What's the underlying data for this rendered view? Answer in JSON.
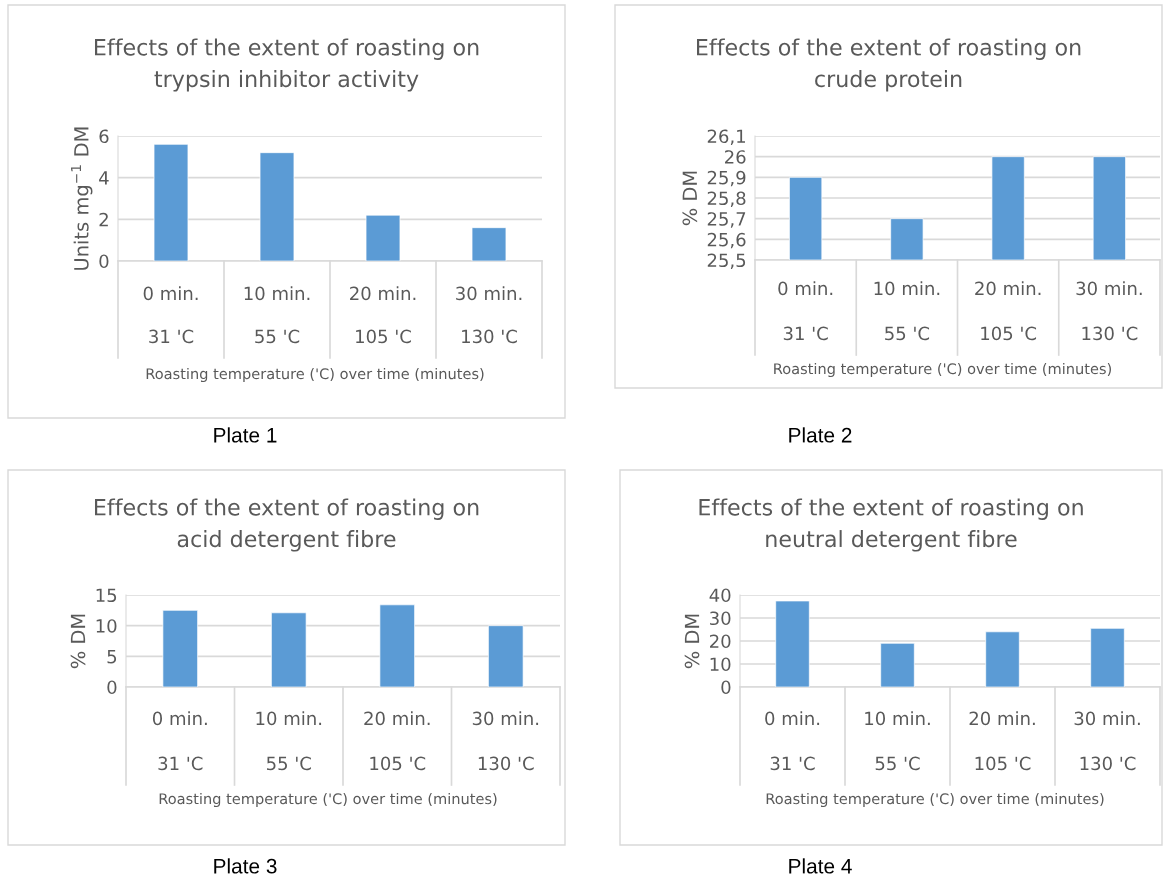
{
  "chart_data": [
    {
      "type": "bar",
      "title": "Effects of the extent of roasting on\ntrypsin inhibitor activity",
      "ylabel": "Units mg$^{−1}$ DM",
      "xlabel": "Roasting temperature ('C) over time (minutes)",
      "categories": [
        "0 min.\n31 'C",
        "10 min.\n55 'C",
        "20 min.\n105 'C",
        "30 min.\n130 'C"
      ],
      "values": [
        5.6,
        5.2,
        2.2,
        1.6
      ],
      "color": "#5b9bd5",
      "ylim": [
        0,
        6
      ],
      "yticks": [
        0,
        2,
        4,
        6
      ],
      "grid": "y",
      "annotations": [
        "Plate 1"
      ]
    },
    {
      "type": "bar",
      "title": "Effects of the extent of roasting on\ncrude protein",
      "ylabel": "% DM",
      "xlabel": "Roasting temperature ('C) over time (minutes)",
      "categories": [
        "0 min.\n31 'C",
        "10 min.\n55 'C",
        "20 min.\n105 'C",
        "30 min.\n130 'C"
      ],
      "values": [
        25.9,
        25.7,
        26,
        26
      ],
      "color": "#5b9bd5",
      "ylim": [
        25.5,
        26.1
      ],
      "yticks": [
        {
          "value": 25.5,
          "label": "25,5"
        },
        {
          "value": 25.6,
          "label": "25,6"
        },
        {
          "value": 25.7,
          "label": "25,7"
        },
        {
          "value": 25.8,
          "label": "25,8"
        },
        {
          "value": 25.9,
          "label": "25,9"
        },
        26,
        {
          "value": 26.1,
          "label": "26,1"
        }
      ],
      "grid": "y",
      "annotations": [
        "Plate 2"
      ]
    },
    {
      "type": "bar",
      "title": "Effects of the extent of roasting on\nacid detergent fibre",
      "ylabel": "% DM",
      "xlabel": "Roasting temperature ('C) over time (minutes)",
      "categories": [
        "0 min.\n31 'C",
        "10 min.\n55 'C",
        "20 min.\n105 'C",
        "30 min.\n130 'C"
      ],
      "values": [
        12.5,
        12.1,
        13.4,
        10
      ],
      "color": "#5b9bd5",
      "ylim": [
        0,
        15
      ],
      "yticks": [
        0,
        5,
        10,
        15
      ],
      "grid": "y",
      "annotations": [
        "Plate 3"
      ]
    },
    {
      "type": "bar",
      "title": "Effects of the extent of roasting on\nneutral detergent fibre",
      "ylabel": "% DM",
      "xlabel": "Roasting temperature ('C) over time (minutes)",
      "categories": [
        "0 min.\n31 'C",
        "10 min.\n55 'C",
        "20 min.\n105 'C",
        "30 min.\n130 'C"
      ],
      "values": [
        37.4,
        19,
        24,
        25.5
      ],
      "color": "#5b9bd5",
      "ylim": [
        0,
        40
      ],
      "yticks": [
        0,
        10,
        20,
        30,
        40
      ],
      "grid": "y",
      "annotations": [
        "Plate 4"
      ]
    }
  ]
}
